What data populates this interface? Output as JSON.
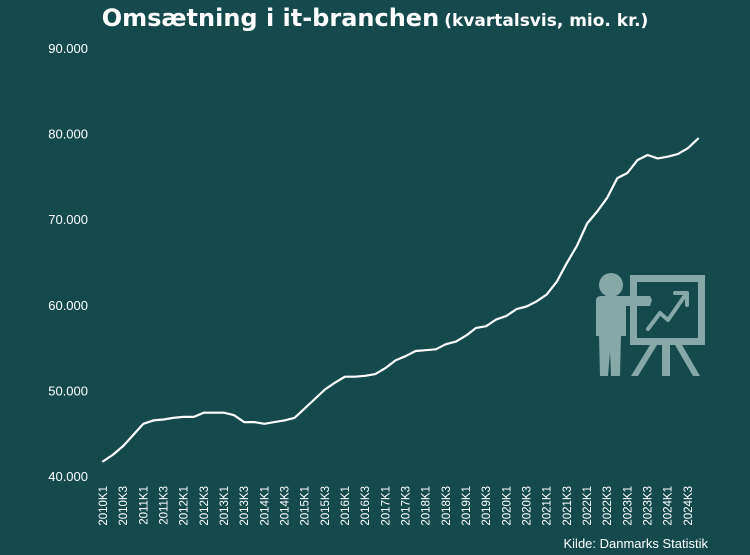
{
  "header": {
    "title": "Omsætning i it-branchen",
    "subtitle": "(kvartalsvis, mio. kr.)"
  },
  "footer": {
    "source": "Kilde: Danmarks Statistik"
  },
  "icon": {
    "name": "presentation-growth-icon",
    "color": "#86a8a7"
  },
  "colors": {
    "background": "#144a4c",
    "line": "#ffffff",
    "text": "#ffffff"
  },
  "chart_data": {
    "type": "line",
    "title": "Omsætning i it-branchen (kvartalsvis, mio. kr.)",
    "xlabel": "",
    "ylabel": "",
    "ylim": [
      40000,
      90000
    ],
    "yticks": [
      40000,
      50000,
      60000,
      70000,
      80000,
      90000
    ],
    "ytick_labels": [
      "40.000",
      "50.000",
      "60.000",
      "70.000",
      "80.000",
      "90.000"
    ],
    "xtick_labels": [
      "2010K1",
      "2010K3",
      "2011K1",
      "2011K3",
      "2012K1",
      "2012K3",
      "2013K1",
      "2013K3",
      "2014K1",
      "2014K3",
      "2015K1",
      "2015K3",
      "2016K1",
      "2016K3",
      "2017K1",
      "2017K3",
      "2018K1",
      "2018K3",
      "2019K1",
      "2019K3",
      "2020K1",
      "2020K3",
      "2021K1",
      "2021K3",
      "2022K1",
      "2022K3",
      "2023K1",
      "2023K3",
      "2024K1",
      "2024K3"
    ],
    "grid": false,
    "legend": "none",
    "series": [
      {
        "values": [
          41700,
          42500,
          43500,
          44800,
          46100,
          46500,
          46600,
          46800,
          46900,
          46900,
          47400,
          47400,
          47400,
          47100,
          46300,
          46300,
          46100,
          46300,
          46500,
          46800,
          47900,
          49000,
          50100,
          50900,
          51600,
          51600,
          51700,
          51900,
          52600,
          53500,
          54000,
          54600,
          54700,
          54800,
          55400,
          55700,
          56400,
          57300,
          57500,
          58300,
          58700,
          59500,
          59800,
          60400,
          61200,
          62700,
          64900,
          66900,
          69500,
          70900,
          72500,
          74800,
          75400,
          76900,
          77500,
          77100,
          77300,
          77600,
          78300,
          79400
        ]
      }
    ]
  }
}
